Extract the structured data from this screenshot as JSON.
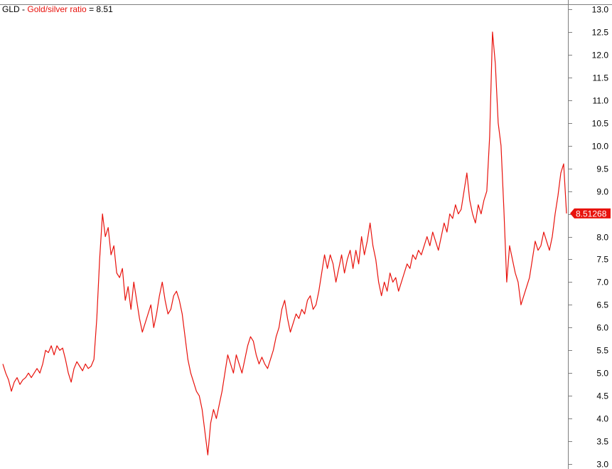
{
  "header": {
    "symbol": "GLD",
    "separator": " - ",
    "series_label": "Gold/silver ratio",
    "equals": " = ",
    "current_value": "8.51"
  },
  "colors": {
    "series": "#e8120c",
    "axis": "#7f7f7f",
    "background": "#ffffff"
  },
  "chart_data": {
    "type": "line",
    "title": "",
    "xlabel": "",
    "ylabel": "",
    "ylim": [
      3.0,
      13.0
    ],
    "grid": false,
    "y_axis_side": "right",
    "y_ticks": [
      "3.0",
      "3.5",
      "4.0",
      "4.5",
      "5.0",
      "5.5",
      "6.0",
      "6.5",
      "7.0",
      "7.5",
      "8.0",
      "8.5",
      "9.0",
      "9.5",
      "10.0",
      "10.5",
      "11.0",
      "11.5",
      "12.0",
      "12.5",
      "13.0"
    ],
    "last_value_label": "8.51268",
    "series": [
      {
        "values": [
          5.2,
          5.0,
          4.85,
          4.6,
          4.8,
          4.9,
          4.75,
          4.85,
          4.9,
          5.0,
          4.9,
          5.0,
          5.1,
          5.0,
          5.2,
          5.5,
          5.45,
          5.6,
          5.4,
          5.6,
          5.5,
          5.55,
          5.3,
          5.0,
          4.8,
          5.1,
          5.25,
          5.15,
          5.05,
          5.2,
          5.1,
          5.15,
          5.3,
          6.2,
          7.5,
          8.5,
          8.0,
          8.2,
          7.6,
          7.8,
          7.2,
          7.1,
          7.3,
          6.6,
          6.9,
          6.4,
          7.0,
          6.6,
          6.2,
          5.9,
          6.1,
          6.3,
          6.5,
          6.0,
          6.3,
          6.7,
          7.0,
          6.6,
          6.3,
          6.4,
          6.7,
          6.8,
          6.6,
          6.3,
          5.8,
          5.3,
          5.0,
          4.8,
          4.6,
          4.5,
          4.2,
          3.7,
          3.2,
          3.9,
          4.2,
          4.0,
          4.3,
          4.6,
          5.0,
          5.4,
          5.2,
          5.0,
          5.4,
          5.2,
          5.0,
          5.3,
          5.6,
          5.8,
          5.7,
          5.4,
          5.2,
          5.35,
          5.2,
          5.1,
          5.3,
          5.5,
          5.8,
          6.0,
          6.4,
          6.6,
          6.2,
          5.9,
          6.1,
          6.3,
          6.2,
          6.4,
          6.3,
          6.6,
          6.7,
          6.4,
          6.5,
          6.8,
          7.2,
          7.6,
          7.3,
          7.6,
          7.4,
          7.0,
          7.3,
          7.6,
          7.2,
          7.5,
          7.7,
          7.3,
          7.7,
          7.4,
          8.0,
          7.6,
          7.9,
          8.3,
          7.8,
          7.5,
          7.0,
          6.7,
          7.0,
          6.8,
          7.2,
          7.0,
          7.1,
          6.8,
          7.0,
          7.2,
          7.4,
          7.3,
          7.6,
          7.5,
          7.7,
          7.6,
          7.8,
          8.0,
          7.8,
          8.1,
          7.9,
          7.7,
          8.0,
          8.3,
          8.1,
          8.5,
          8.4,
          8.7,
          8.5,
          8.6,
          9.0,
          9.4,
          8.8,
          8.5,
          8.3,
          8.7,
          8.5,
          8.8,
          9.0,
          10.2,
          12.5,
          11.8,
          10.5,
          10.0,
          8.6,
          7.0,
          7.8,
          7.5,
          7.2,
          7.0,
          6.5,
          6.7,
          6.9,
          7.1,
          7.5,
          7.9,
          7.7,
          7.8,
          8.1,
          7.9,
          7.7,
          8.0,
          8.5,
          8.9,
          9.4,
          9.6,
          8.51
        ]
      }
    ]
  }
}
